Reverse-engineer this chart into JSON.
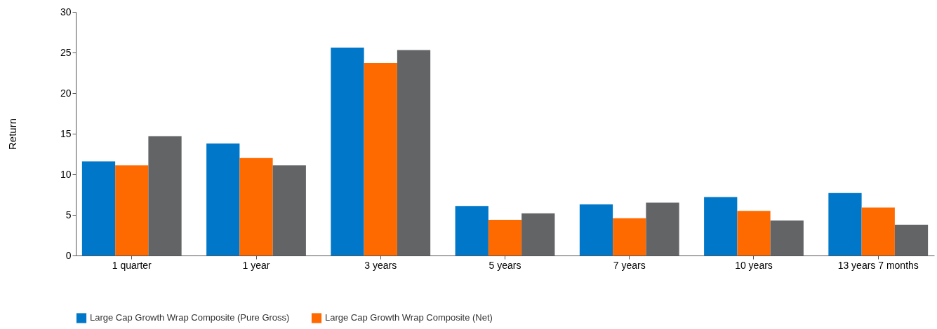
{
  "chart_data": {
    "type": "bar",
    "ylabel": "Return",
    "categories": [
      "1 quarter",
      "1 year",
      "3 years",
      "5 years",
      "7 years",
      "10 years",
      "13 years 7 months"
    ],
    "series": [
      {
        "name": "Large Cap Growth Wrap Composite (Pure Gross)",
        "color": "#0077c8",
        "values": [
          11.6,
          13.8,
          25.6,
          6.1,
          6.3,
          7.2,
          7.7
        ]
      },
      {
        "name": "Large Cap Growth Wrap Composite (Net)",
        "color": "#ff6a00",
        "values": [
          11.1,
          12.0,
          23.7,
          4.4,
          4.6,
          5.5,
          5.9
        ]
      },
      {
        "color": "#636466",
        "values": [
          14.7,
          11.1,
          25.3,
          5.2,
          6.5,
          4.3,
          3.8
        ]
      }
    ],
    "ylim": [
      0,
      30
    ],
    "yticks": [
      0,
      5,
      10,
      15,
      20,
      25,
      30
    ],
    "grid": false,
    "legend": "bottom"
  }
}
